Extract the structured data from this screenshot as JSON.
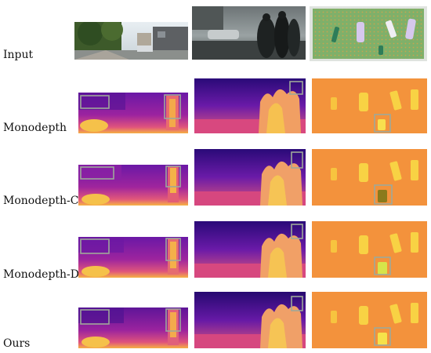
{
  "rows": [
    {
      "label": "Input"
    },
    {
      "label": "Monodepth"
    },
    {
      "label": "Monodepth-C"
    },
    {
      "label": "Monodepth-D"
    },
    {
      "label": "Ours"
    }
  ],
  "columns": [
    {
      "scene": "street-scene"
    },
    {
      "scene": "pedestrian-scene"
    },
    {
      "scene": "battery-board-scene"
    }
  ],
  "colors": {
    "depth_dark": "#2a0a78",
    "depth_mid": "#b224a8",
    "depth_bright": "#f7d13d",
    "board_green": "#6aa25a",
    "highlight_box": "#9ea89a"
  }
}
